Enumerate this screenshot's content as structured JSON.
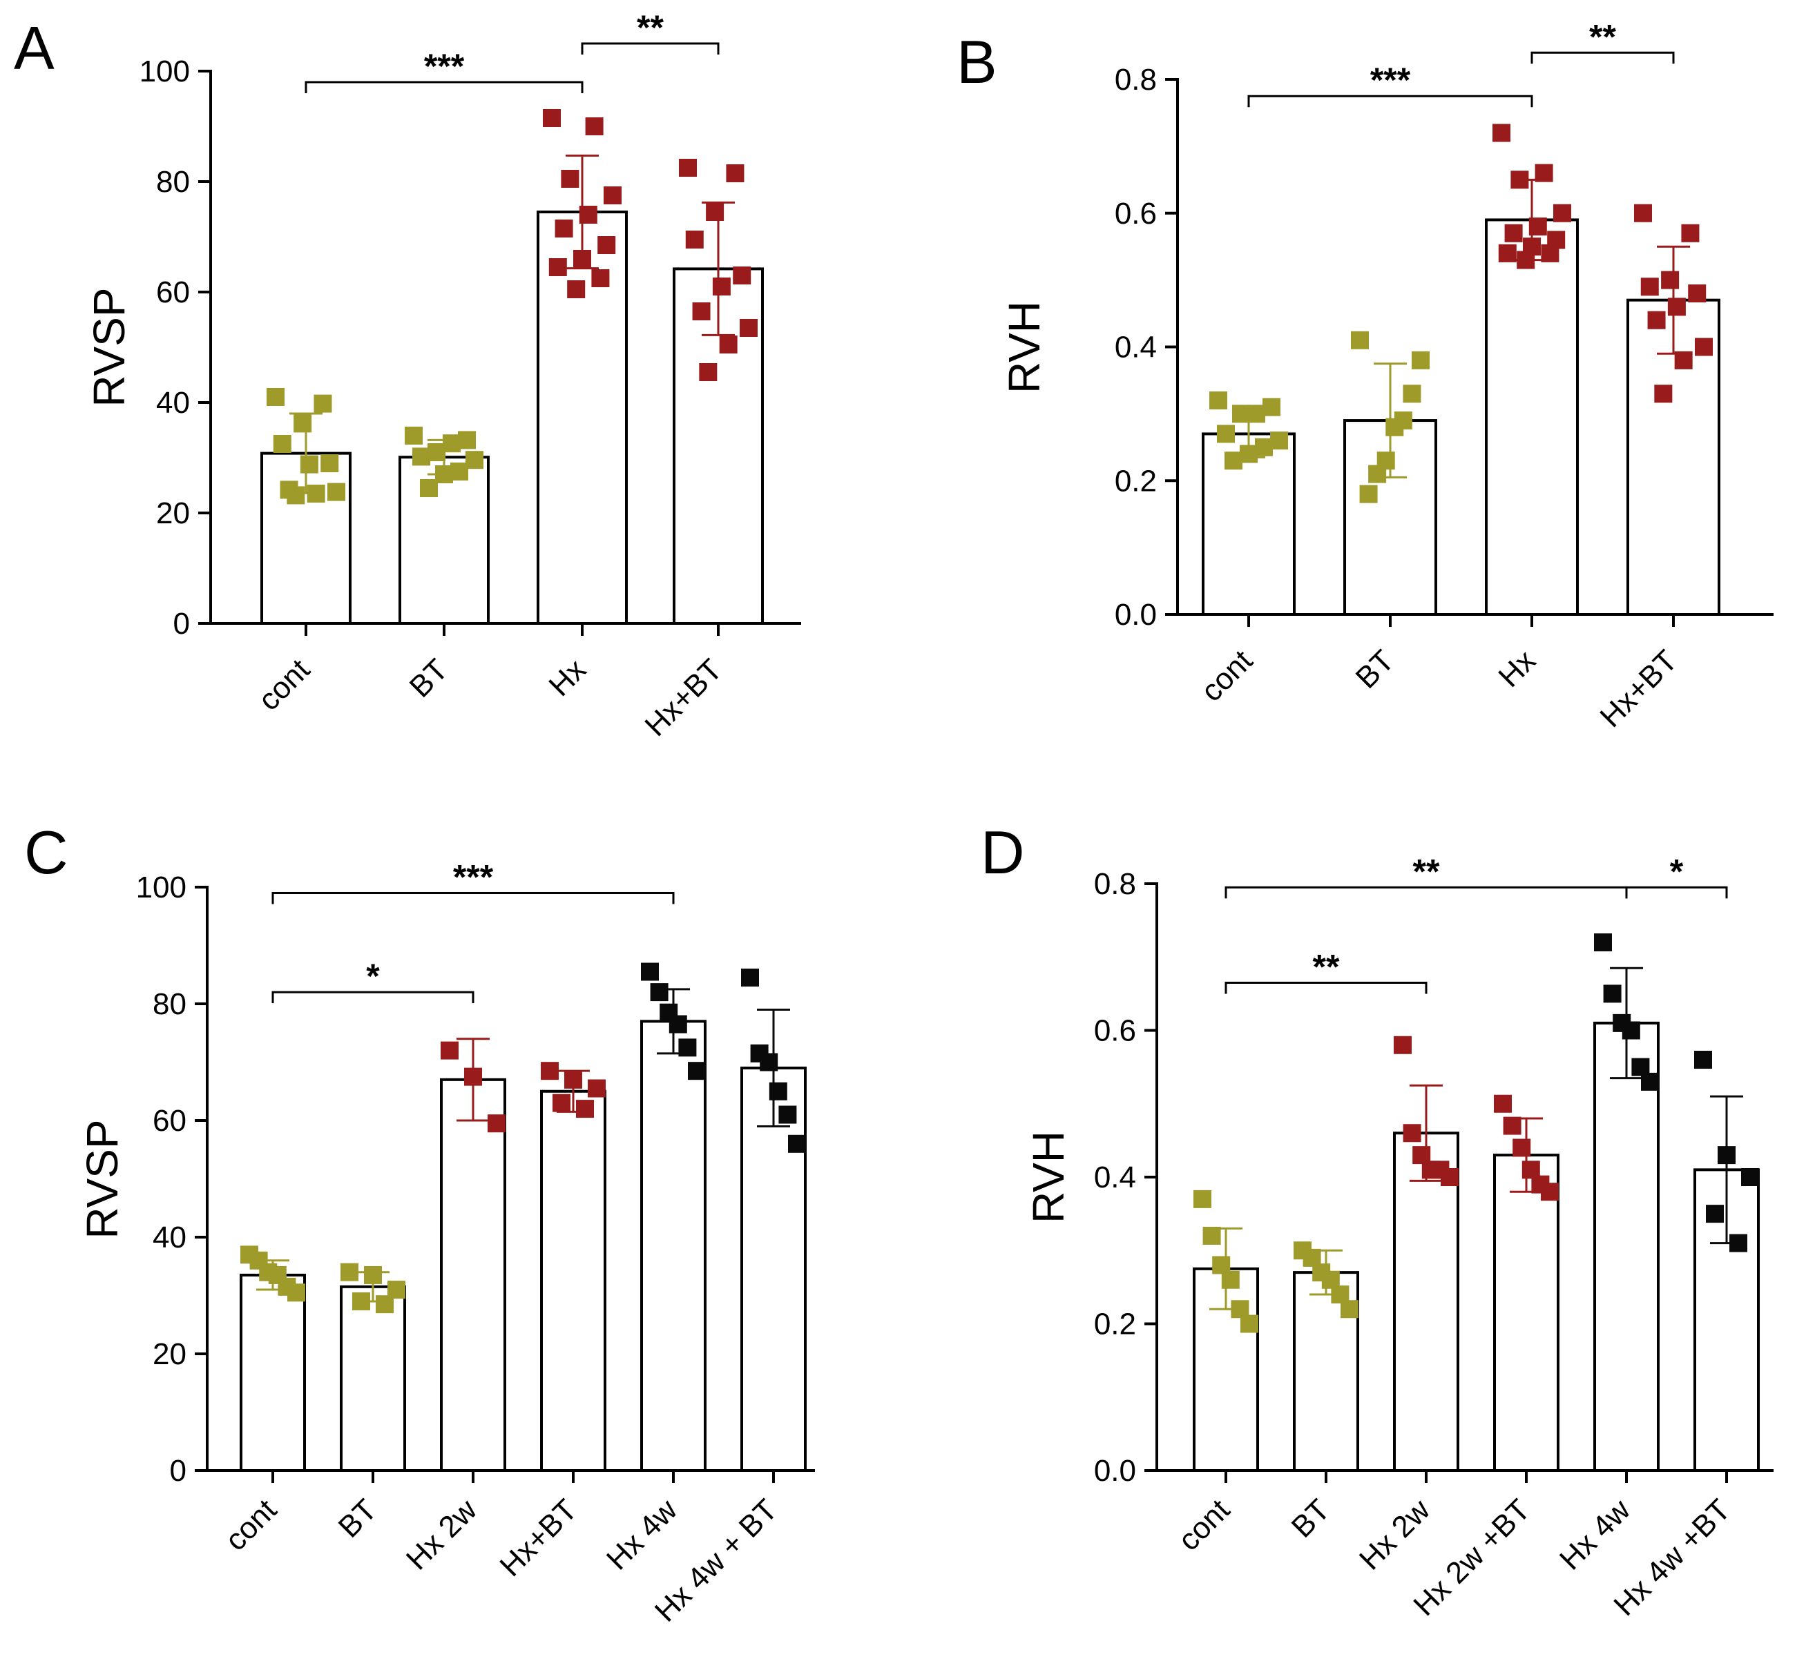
{
  "colors": {
    "control": "#9e9b2a",
    "hypoxia": "#9a1b1b",
    "hypoxia_4w": "#0a0a0a",
    "axis": "#000000"
  },
  "chart_data": [
    {
      "panel": "A",
      "type": "bar",
      "ylabel": "RVSP",
      "ylim": [
        0,
        100
      ],
      "yticks": [
        0,
        20,
        40,
        60,
        80,
        100
      ],
      "ytick_labels": [
        "0",
        "20",
        "40",
        "60",
        "80",
        "100"
      ],
      "categories": [
        "cont",
        "BT",
        "Hx",
        "Hx+BT"
      ],
      "values": [
        30.8,
        30.1,
        74.5,
        64.2
      ],
      "errors": [
        7.2,
        3.1,
        10.2,
        12.0
      ],
      "colors": [
        "#9e9b2a",
        "#9e9b2a",
        "#9a1b1b",
        "#9a1b1b"
      ],
      "points": [
        [
          41.0,
          39.8,
          36.2,
          32.5,
          29.0,
          28.8,
          24.2,
          23.8,
          23.5,
          23.2
        ],
        [
          34.0,
          33.2,
          32.6,
          31.0,
          30.2,
          29.6,
          27.5,
          27.0,
          24.5
        ],
        [
          91.5,
          90.0,
          80.5,
          77.5,
          74.0,
          71.5,
          68.5,
          66.0,
          64.5,
          62.5,
          60.5
        ],
        [
          82.5,
          81.5,
          74.5,
          69.5,
          63.0,
          61.0,
          56.5,
          53.5,
          50.5,
          45.5
        ]
      ],
      "significance": [
        {
          "from": 0,
          "to": 2,
          "label": "***",
          "y": 98
        },
        {
          "from": 2,
          "to": 3,
          "label": "**",
          "y": 105
        }
      ]
    },
    {
      "panel": "B",
      "type": "bar",
      "ylabel": "RVH",
      "ylim": [
        0,
        0.8
      ],
      "yticks": [
        0,
        0.2,
        0.4,
        0.6,
        0.8
      ],
      "ytick_labels": [
        "0.0",
        "0.2",
        "0.4",
        "0.6",
        "0.8"
      ],
      "categories": [
        "cont",
        "BT",
        "Hx",
        "Hx+BT"
      ],
      "values": [
        0.27,
        0.29,
        0.59,
        0.47
      ],
      "errors": [
        0.035,
        0.085,
        0.06,
        0.08
      ],
      "colors": [
        "#9e9b2a",
        "#9e9b2a",
        "#9a1b1b",
        "#9a1b1b"
      ],
      "points": [
        [
          0.32,
          0.31,
          0.3,
          0.3,
          0.27,
          0.26,
          0.25,
          0.24,
          0.23
        ],
        [
          0.41,
          0.38,
          0.33,
          0.29,
          0.28,
          0.23,
          0.21,
          0.18
        ],
        [
          0.72,
          0.66,
          0.65,
          0.6,
          0.58,
          0.57,
          0.56,
          0.55,
          0.54,
          0.54,
          0.53
        ],
        [
          0.6,
          0.57,
          0.5,
          0.49,
          0.48,
          0.46,
          0.44,
          0.4,
          0.38,
          0.33
        ]
      ],
      "significance": [
        {
          "from": 0,
          "to": 2,
          "label": "***",
          "y": 0.775
        },
        {
          "from": 2,
          "to": 3,
          "label": "**",
          "y": 0.84
        }
      ]
    },
    {
      "panel": "C",
      "type": "bar",
      "ylabel": "RVSP",
      "ylim": [
        0,
        100
      ],
      "yticks": [
        0,
        20,
        40,
        60,
        80,
        100
      ],
      "ytick_labels": [
        "0",
        "20",
        "40",
        "60",
        "80",
        "100"
      ],
      "categories": [
        "cont",
        "BT",
        "Hx 2w",
        "Hx+BT",
        "Hx 4w",
        "Hx 4w + BT"
      ],
      "values": [
        33.5,
        31.5,
        67.0,
        65.0,
        77.0,
        69.0
      ],
      "errors": [
        2.5,
        2.5,
        7.0,
        3.5,
        5.5,
        10.0
      ],
      "colors": [
        "#9e9b2a",
        "#9e9b2a",
        "#9a1b1b",
        "#9a1b1b",
        "#0a0a0a",
        "#0a0a0a"
      ],
      "points": [
        [
          37.0,
          36.0,
          34.0,
          33.5,
          31.5,
          30.5
        ],
        [
          34.0,
          33.5,
          31.0,
          29.0,
          28.5
        ],
        [
          72.0,
          67.5,
          59.5
        ],
        [
          68.5,
          67.0,
          65.5,
          63.0,
          62.0
        ],
        [
          85.5,
          82.0,
          78.5,
          76.5,
          72.5,
          68.5
        ],
        [
          84.5,
          71.5,
          70.0,
          65.0,
          61.0,
          56.0
        ]
      ],
      "significance": [
        {
          "from": 0,
          "to": 2,
          "label": "*",
          "y": 82
        },
        {
          "from": 0,
          "to": 4,
          "label": "***",
          "y": 99
        }
      ]
    },
    {
      "panel": "D",
      "type": "bar",
      "ylabel": "RVH",
      "ylim": [
        0,
        0.8
      ],
      "yticks": [
        0,
        0.2,
        0.4,
        0.6,
        0.8
      ],
      "ytick_labels": [
        "0.0",
        "0.2",
        "0.4",
        "0.6",
        "0.8"
      ],
      "categories": [
        "cont",
        "BT",
        "Hx 2w",
        "Hx 2w +BT",
        "Hx 4w",
        "Hx 4w +BT"
      ],
      "values": [
        0.275,
        0.27,
        0.46,
        0.43,
        0.61,
        0.41
      ],
      "errors": [
        0.055,
        0.03,
        0.065,
        0.05,
        0.075,
        0.1
      ],
      "colors": [
        "#9e9b2a",
        "#9e9b2a",
        "#9a1b1b",
        "#9a1b1b",
        "#0a0a0a",
        "#0a0a0a"
      ],
      "points": [
        [
          0.37,
          0.32,
          0.28,
          0.26,
          0.22,
          0.2
        ],
        [
          0.3,
          0.29,
          0.27,
          0.26,
          0.24,
          0.22
        ],
        [
          0.58,
          0.46,
          0.43,
          0.41,
          0.41,
          0.4
        ],
        [
          0.5,
          0.47,
          0.44,
          0.41,
          0.39,
          0.38
        ],
        [
          0.72,
          0.65,
          0.61,
          0.6,
          0.55,
          0.53
        ],
        [
          0.56,
          0.43,
          0.4,
          0.35,
          0.31
        ]
      ],
      "significance": [
        {
          "from": 0,
          "to": 2,
          "label": "**",
          "y": 0.665
        },
        {
          "from": 0,
          "to": 4,
          "label": "**",
          "y": 0.795
        },
        {
          "from": 4,
          "to": 5,
          "label": "*",
          "y": 0.795
        }
      ]
    }
  ]
}
